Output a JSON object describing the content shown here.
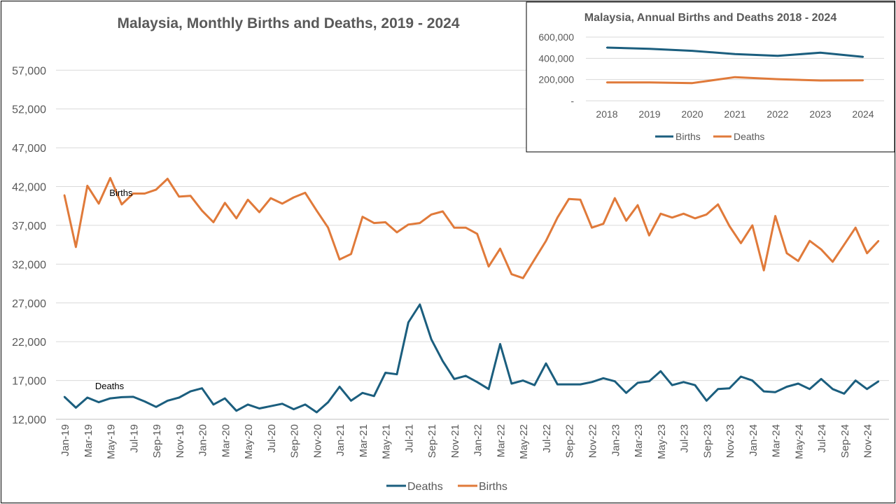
{
  "colors": {
    "births": "#E07A3A",
    "deaths": "#1B5E7E",
    "text": "#595959",
    "grid": "#D9D9D9",
    "border": "#000000"
  },
  "chart_data": [
    {
      "type": "line",
      "title": "Malaysia, Monthly Births and Deaths, 2019 - 2024",
      "xlabel": "",
      "ylabel": "",
      "ylim": [
        12000,
        60000
      ],
      "yticks": [
        "12,000",
        "17,000",
        "22,000",
        "27,000",
        "32,000",
        "37,000",
        "42,000",
        "47,000",
        "52,000",
        "57,000"
      ],
      "grid": "horizontal",
      "legend": "bottom",
      "x": [
        "Jan-19",
        "Feb-19",
        "Mar-19",
        "Apr-19",
        "May-19",
        "Jun-19",
        "Jul-19",
        "Aug-19",
        "Sep-19",
        "Oct-19",
        "Nov-19",
        "Dec-19",
        "Jan-20",
        "Feb-20",
        "Mar-20",
        "Apr-20",
        "May-20",
        "Jun-20",
        "Jul-20",
        "Aug-20",
        "Sep-20",
        "Oct-20",
        "Nov-20",
        "Dec-20",
        "Jan-21",
        "Feb-21",
        "Mar-21",
        "Apr-21",
        "May-21",
        "Jun-21",
        "Jul-21",
        "Aug-21",
        "Sep-21",
        "Oct-21",
        "Nov-21",
        "Dec-21",
        "Jan-22",
        "Feb-22",
        "Mar-22",
        "Apr-22",
        "May-22",
        "Jun-22",
        "Jul-22",
        "Aug-22",
        "Sep-22",
        "Oct-22",
        "Nov-22",
        "Dec-22",
        "Jan-23",
        "Feb-23",
        "Mar-23",
        "Apr-23",
        "May-23",
        "Jun-23",
        "Jul-23",
        "Aug-23",
        "Sep-23",
        "Oct-23",
        "Nov-23",
        "Dec-23",
        "Jan-24",
        "Feb-24",
        "Mar-24",
        "Apr-24",
        "May-24",
        "Jun-24",
        "Jul-24",
        "Aug-24",
        "Sep-24",
        "Oct-24",
        "Nov-24",
        "Dec-24"
      ],
      "xtick_labels": [
        "Jan-19",
        "Mar-19",
        "May-19",
        "Jul-19",
        "Sep-19",
        "Nov-19",
        "Jan-20",
        "Mar-20",
        "May-20",
        "Jul-20",
        "Sep-20",
        "Nov-20",
        "Jan-21",
        "Mar-21",
        "May-21",
        "Jul-21",
        "Sep-21",
        "Nov-21",
        "Jan-22",
        "Mar-22",
        "May-22",
        "Jul-22",
        "Sep-22",
        "Nov-22",
        "Jan-23",
        "Mar-23",
        "May-23",
        "Jul-23",
        "Sep-23",
        "Nov-23",
        "Jan-24",
        "Mar-24",
        "May-24",
        "Jul-24",
        "Sep-24",
        "Nov-24"
      ],
      "series": [
        {
          "name": "Deaths",
          "color": "#1B5E7E",
          "values": [
            14900,
            13500,
            14800,
            14200,
            14700,
            14850,
            14900,
            14300,
            13600,
            14400,
            14800,
            15600,
            16000,
            13900,
            14700,
            13100,
            13900,
            13400,
            13700,
            14000,
            13300,
            13900,
            12900,
            14200,
            16200,
            14400,
            15400,
            15000,
            18000,
            17800,
            24500,
            26800,
            22300,
            19500,
            17200,
            17600,
            16800,
            15900,
            21700,
            16600,
            17000,
            16400,
            19200,
            16500,
            16500,
            16500,
            16800,
            17300,
            16900,
            15400,
            16700,
            16900,
            18200,
            16400,
            16800,
            16400,
            14400,
            15900,
            16000,
            17500,
            17000,
            15600,
            15500,
            16200,
            16600,
            15900,
            17200,
            15900,
            15300,
            17000,
            15900,
            16900
          ]
        },
        {
          "name": "Births",
          "color": "#E07A3A",
          "values": [
            40900,
            34200,
            42100,
            39800,
            43100,
            39700,
            41100,
            41100,
            41600,
            43000,
            40700,
            40800,
            38900,
            37400,
            39900,
            37900,
            40300,
            38700,
            40500,
            39800,
            40600,
            41200,
            38900,
            36700,
            32600,
            33300,
            38100,
            37300,
            37400,
            36100,
            37100,
            37300,
            38400,
            38800,
            36700,
            36700,
            35900,
            31700,
            34000,
            30700,
            30200,
            32600,
            35000,
            38000,
            40400,
            40300,
            36700,
            37200,
            40500,
            37600,
            39600,
            35700,
            38500,
            38000,
            38500,
            37900,
            38400,
            39700,
            36900,
            34700,
            37000,
            31200,
            38200,
            33400,
            32400,
            35000,
            33900,
            32300,
            34500,
            36700,
            33400,
            35000
          ]
        }
      ],
      "annotations": [
        {
          "text": "Births",
          "series": "Births",
          "at": "Jun-19"
        },
        {
          "text": "Deaths",
          "series": "Deaths",
          "at": "May-19"
        }
      ]
    },
    {
      "type": "line",
      "title": "Malaysia, Annual Births and Deaths 2018 - 2024",
      "xlabel": "",
      "ylabel": "",
      "ylim": [
        0,
        600000
      ],
      "yticks": [
        "-",
        "200,000",
        "400,000",
        "600,000"
      ],
      "grid": "horizontal",
      "legend": "bottom",
      "categories": [
        "2018",
        "2019",
        "2020",
        "2021",
        "2022",
        "2023",
        "2024"
      ],
      "series": [
        {
          "name": "Births",
          "color": "#1B5E7E",
          "values": [
            501000,
            489000,
            471000,
            440000,
            423000,
            453000,
            414000
          ]
        },
        {
          "name": "Deaths",
          "color": "#E07A3A",
          "values": [
            173000,
            173000,
            167000,
            223000,
            204000,
            191000,
            193000
          ]
        }
      ]
    }
  ]
}
